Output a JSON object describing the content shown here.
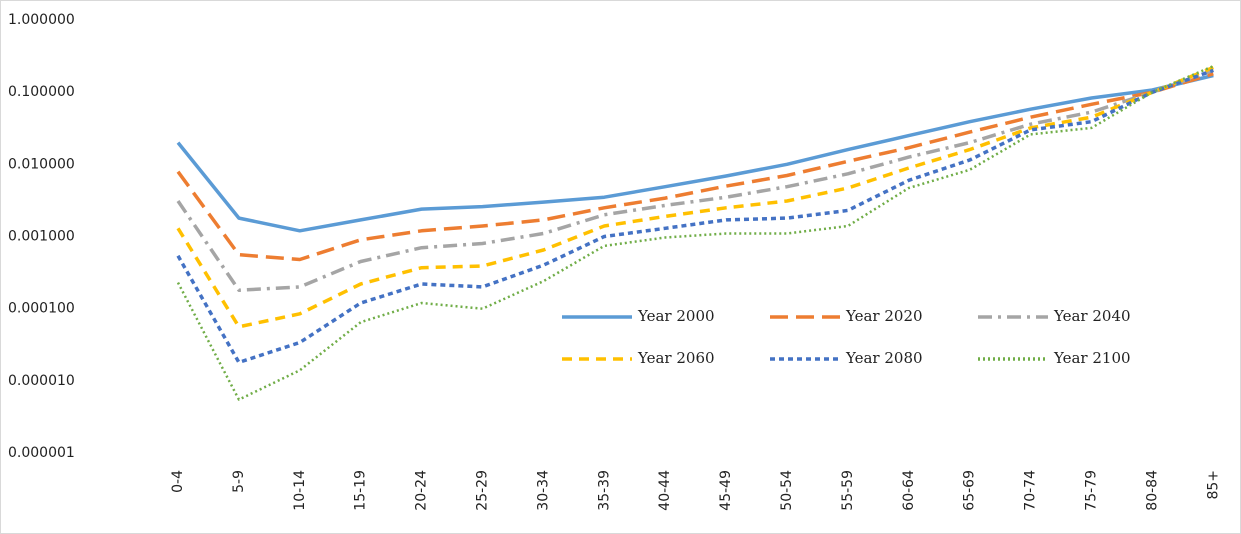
{
  "chart_data": {
    "type": "line",
    "log_scale": true,
    "grid": false,
    "categories": [
      "0-4",
      "5-9",
      "10-14",
      "15-19",
      "20-24",
      "25-29",
      "30-34",
      "35-39",
      "40-44",
      "45-49",
      "50-54",
      "55-59",
      "60-64",
      "65-69",
      "70-74",
      "75-79",
      "80-84",
      "85+"
    ],
    "ylim": [
      1e-06,
      1
    ],
    "yticks": [
      {
        "value": 1,
        "label": "1.000000"
      },
      {
        "value": 0.1,
        "label": "0.100000"
      },
      {
        "value": 0.01,
        "label": "0.010000"
      },
      {
        "value": 0.001,
        "label": "0.001000"
      },
      {
        "value": 0.0001,
        "label": "0.000100"
      },
      {
        "value": 1e-05,
        "label": "0.000010"
      },
      {
        "value": 1e-06,
        "label": "0.000001"
      }
    ],
    "series": [
      {
        "name": "Year 2000",
        "color": "#5b9bd5",
        "dash": "solid",
        "values": [
          0.02,
          0.0018,
          0.0012,
          0.0017,
          0.0024,
          0.0026,
          0.003,
          0.0035,
          0.0049,
          0.0069,
          0.01,
          0.016,
          0.025,
          0.039,
          0.058,
          0.083,
          0.107,
          0.17
        ]
      },
      {
        "name": "Year 2020",
        "color": "#ed7d31",
        "dash": "longdash",
        "values": [
          0.0079,
          0.00056,
          0.00048,
          0.0009,
          0.0012,
          0.0014,
          0.0017,
          0.0025,
          0.0034,
          0.005,
          0.007,
          0.011,
          0.017,
          0.028,
          0.045,
          0.068,
          0.1,
          0.18
        ]
      },
      {
        "name": "Year 2040",
        "color": "#a5a5a5",
        "dash": "dashdot",
        "values": [
          0.0031,
          0.00018,
          0.0002,
          0.00045,
          0.0007,
          0.0008,
          0.0011,
          0.002,
          0.0027,
          0.0035,
          0.0049,
          0.0074,
          0.0126,
          0.02,
          0.036,
          0.053,
          0.1,
          0.2
        ]
      },
      {
        "name": "Year 2060",
        "color": "#ffc000",
        "dash": "dash",
        "values": [
          0.0013,
          5.6e-05,
          8.5e-05,
          0.00022,
          0.00037,
          0.00039,
          0.00065,
          0.0014,
          0.0019,
          0.0025,
          0.0031,
          0.0047,
          0.0089,
          0.016,
          0.032,
          0.045,
          0.1,
          0.22
        ]
      },
      {
        "name": "Year 2080",
        "color": "#4472c4",
        "dash": "shortdash",
        "values": [
          0.00054,
          1.8e-05,
          3.4e-05,
          0.00012,
          0.00022,
          0.0002,
          0.0004,
          0.001,
          0.0013,
          0.0017,
          0.0018,
          0.0023,
          0.006,
          0.0115,
          0.03,
          0.039,
          0.1,
          0.2
        ]
      },
      {
        "name": "Year 2100",
        "color": "#70ad47",
        "dash": "dot",
        "values": [
          0.00023,
          5.5e-06,
          1.4e-05,
          6.5e-05,
          0.00012,
          0.0001,
          0.00024,
          0.00074,
          0.00097,
          0.0011,
          0.0011,
          0.0014,
          0.0047,
          0.0084,
          0.026,
          0.032,
          0.1,
          0.23
        ]
      }
    ]
  }
}
